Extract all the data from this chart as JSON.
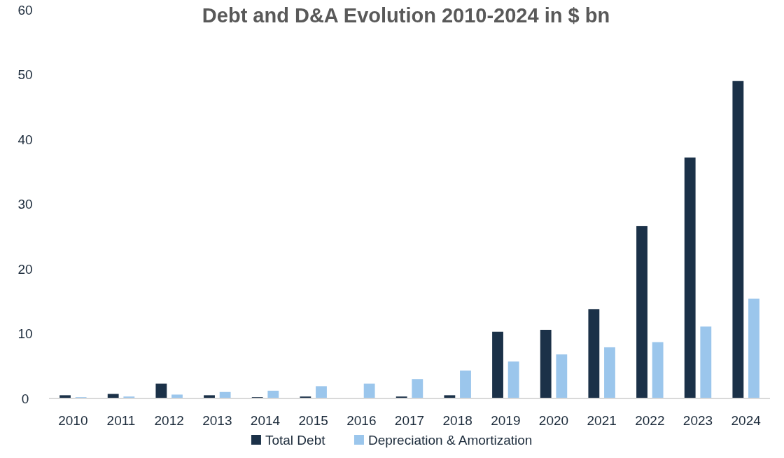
{
  "chart_data": {
    "type": "bar",
    "title": "Debt and D&A Evolution 2010-2024 in $ bn",
    "categories": [
      "2010",
      "2011",
      "2012",
      "2013",
      "2014",
      "2015",
      "2016",
      "2017",
      "2018",
      "2019",
      "2020",
      "2021",
      "2022",
      "2023",
      "2024"
    ],
    "series": [
      {
        "name": "Total Debt",
        "color": "#1b3148",
        "values": [
          0.5,
          0.7,
          2.3,
          0.5,
          0.2,
          0.3,
          0,
          0.3,
          0.5,
          10.3,
          10.6,
          13.8,
          26.6,
          37.2,
          49.0
        ]
      },
      {
        "name": "Depreciation & Amortization",
        "color": "#9bc6ec",
        "values": [
          0.2,
          0.3,
          0.6,
          1.0,
          1.2,
          1.9,
          2.3,
          3.0,
          4.3,
          5.7,
          6.8,
          7.9,
          8.7,
          11.1,
          15.4
        ]
      }
    ],
    "ylim": [
      0,
      60
    ],
    "yticks": [
      0,
      10,
      20,
      30,
      40,
      50,
      60
    ],
    "grid": false,
    "legend": "bottom"
  }
}
